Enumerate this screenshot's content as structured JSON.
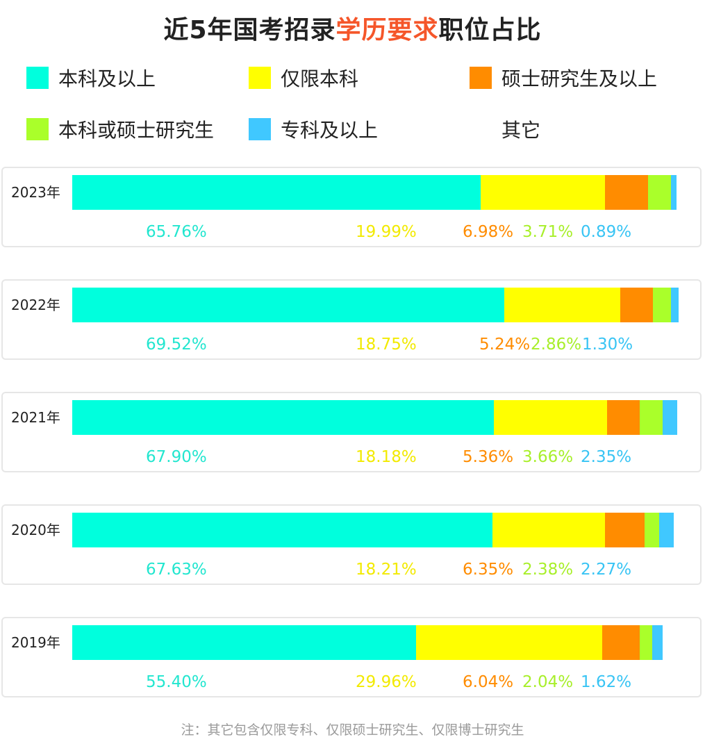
{
  "title": {
    "part1": "近5年国考招录",
    "highlight": "学历要求",
    "part2": "职位占比"
  },
  "legend": [
    {
      "label": "本科及以上",
      "color": "#00ffdd"
    },
    {
      "label": "仅限本科",
      "color": "#ffff00"
    },
    {
      "label": "硕士研究生及以上",
      "color": "#ff8c00"
    },
    {
      "label": "本科或硕士研究生",
      "color": "#aaff2a"
    },
    {
      "label": "专科及以上",
      "color": "#40c8ff"
    },
    {
      "label": "其它",
      "color": ""
    }
  ],
  "footnote": "注：其它包含仅限专科、仅限硕士研究生、仅限博士研究生",
  "chart_data": {
    "type": "bar",
    "orientation": "horizontal-stacked",
    "categories": [
      "2023年",
      "2022年",
      "2021年",
      "2020年",
      "2019年"
    ],
    "series": [
      {
        "name": "本科及以上",
        "values": [
          65.76,
          69.52,
          67.9,
          67.63,
          55.4
        ],
        "labels": [
          "65.76%",
          "69.52%",
          "67.90%",
          "67.63%",
          "55.40%"
        ]
      },
      {
        "name": "仅限本科",
        "values": [
          19.99,
          18.75,
          18.18,
          18.21,
          29.96
        ],
        "labels": [
          "19.99%",
          "18.75%",
          "18.18%",
          "18.21%",
          "29.96%"
        ]
      },
      {
        "name": "硕士研究生及以上",
        "values": [
          6.98,
          5.24,
          5.36,
          6.35,
          6.04
        ],
        "labels": [
          "6.98%",
          "5.24%",
          "5.36%",
          "6.35%",
          "6.04%"
        ]
      },
      {
        "name": "本科或硕士研究生",
        "values": [
          3.71,
          2.86,
          3.66,
          2.38,
          2.04
        ],
        "labels": [
          "3.71%",
          "2.86%",
          "3.66%",
          "2.38%",
          "2.04%"
        ]
      },
      {
        "name": "专科及以上",
        "values": [
          0.89,
          1.3,
          2.35,
          2.27,
          1.62
        ],
        "labels": [
          "0.89%",
          "1.30%",
          "2.35%",
          "2.27%",
          "1.62%"
        ]
      }
    ],
    "xlim": [
      0,
      100
    ]
  }
}
